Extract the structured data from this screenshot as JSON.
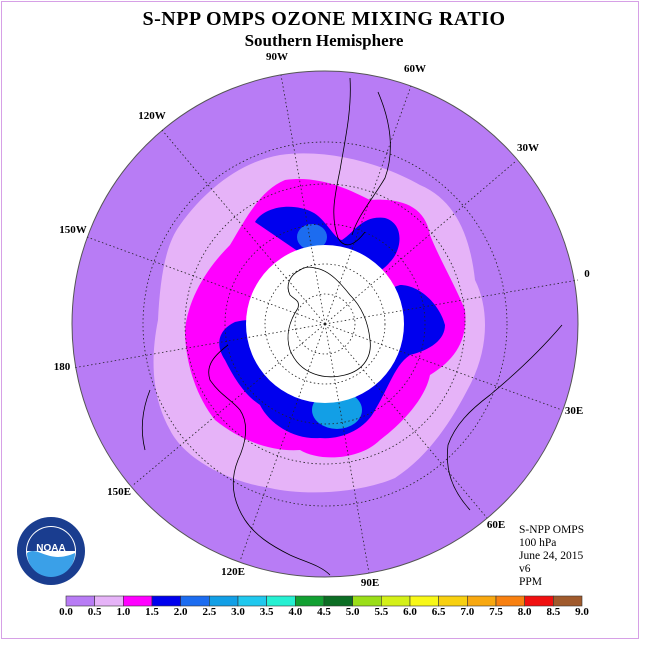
{
  "title": "S-NPP OMPS OZONE MIXING RATIO",
  "subtitle": "Southern Hemisphere",
  "info": {
    "instrument": "S-NPP OMPS",
    "level": "100 hPa",
    "date": "June 24, 2015",
    "version": "v6",
    "units": "PPM"
  },
  "longitude_labels": [
    "90W",
    "60W",
    "30W",
    "0",
    "30E",
    "60E",
    "90E",
    "120E",
    "150E",
    "180",
    "150W",
    "120W"
  ],
  "colorbar": {
    "ticks": [
      "0.0",
      "0.5",
      "1.0",
      "1.5",
      "2.0",
      "2.5",
      "3.0",
      "3.5",
      "4.0",
      "4.5",
      "5.0",
      "5.5",
      "6.0",
      "6.5",
      "7.0",
      "7.5",
      "8.0",
      "8.5",
      "9.0"
    ],
    "colors": [
      "#b87cf5",
      "#e6b3f8",
      "#ff00ff",
      "#0000ee",
      "#1c6cf0",
      "#129fe6",
      "#20c8ee",
      "#26f0d2",
      "#12a032",
      "#0c6e24",
      "#9ade18",
      "#d4f018",
      "#f8f818",
      "#f8d010",
      "#f8a810",
      "#f88010",
      "#f01010",
      "#a05a2c"
    ]
  },
  "logo_text": "NOAA"
}
